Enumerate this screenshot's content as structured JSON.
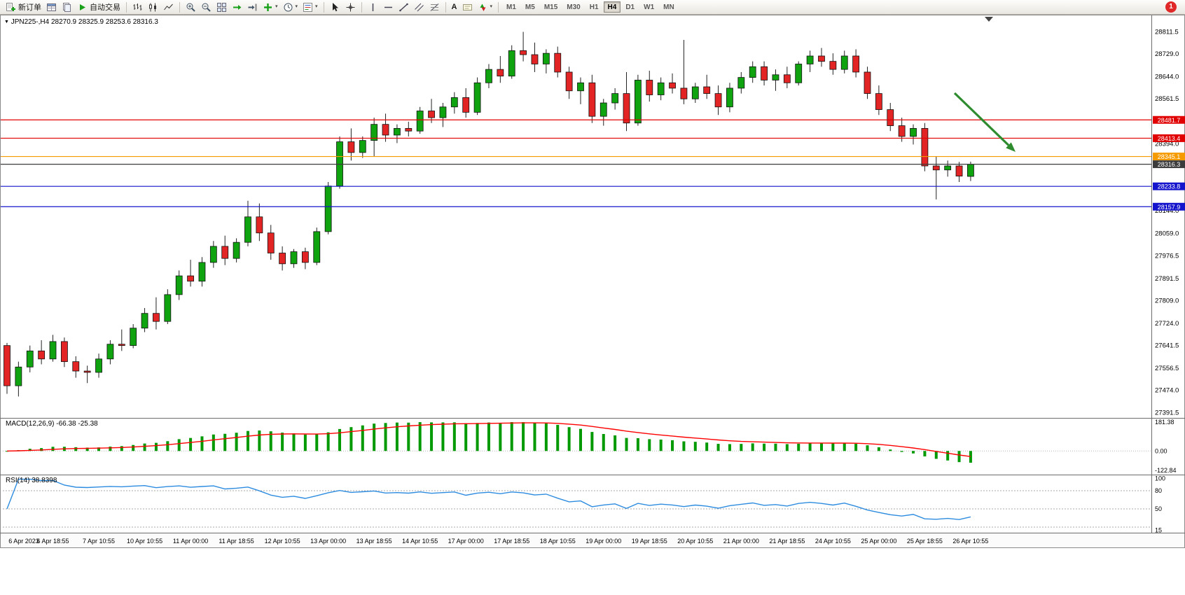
{
  "toolbar": {
    "new_order_label": "新订单",
    "auto_trading_label": "自动交易",
    "text_tool_label": "A",
    "timeframes": [
      "M1",
      "M5",
      "M15",
      "M30",
      "H1",
      "H4",
      "D1",
      "W1",
      "MN"
    ],
    "active_timeframe": "H4",
    "notification_count": "1"
  },
  "glyphs": {
    "caret_down": "▾",
    "collapse_marker": "▼"
  },
  "chart": {
    "symbol_period": "JPN225-,H4",
    "ohlc": "28270.9 28325.9 28253.6 28316.3"
  },
  "indicators": {
    "macd_label": "MACD(12,26,9) -66.38 -25.38",
    "rsi_label": "RSI(14) 38.8398"
  },
  "chart_data": {
    "type": "candlestick",
    "symbol": "JPN225-",
    "period": "H4",
    "price_range": {
      "min": 27378,
      "max": 28827
    },
    "price_axis_labels": [
      28811.5,
      28729.0,
      28644.0,
      28561.5,
      28394.0,
      28144.0,
      28059.0,
      27976.5,
      27891.5,
      27809.0,
      27724.0,
      27641.5,
      27556.5,
      27474.0,
      27391.5
    ],
    "horizontal_lines": [
      {
        "price": 28481.7,
        "label": "28481.7",
        "color": "#e00000"
      },
      {
        "price": 28413.4,
        "label": "28413.4",
        "color": "#e00000"
      },
      {
        "price": 28345.1,
        "label": "28345.1",
        "color": "#f59a00"
      },
      {
        "price": 28316.3,
        "label": "28316.3",
        "color": "#3c3c3c",
        "role": "current-price"
      },
      {
        "price": 28233.8,
        "label": "28233.8",
        "color": "#1414cc"
      },
      {
        "price": 28157.9,
        "label": "28157.9",
        "color": "#1414cc"
      }
    ],
    "colors": {
      "up": "#0fa30f",
      "down": "#e32424",
      "wick": "#222222",
      "macd_histogram": "#009a00",
      "macd_signal": "#ff0000",
      "rsi": "#2d8ce0",
      "arrow": "#2e8b2e"
    },
    "time_labels": [
      "6 Apr 2023",
      "6 Apr 18:55",
      "7 Apr 10:55",
      "10 Apr 10:55",
      "11 Apr 00:00",
      "11 Apr 18:55",
      "12 Apr 10:55",
      "13 Apr 00:00",
      "13 Apr 18:55",
      "14 Apr 10:55",
      "17 Apr 00:00",
      "17 Apr 18:55",
      "18 Apr 10:55",
      "19 Apr 00:00",
      "19 Apr 18:55",
      "20 Apr 10:55",
      "21 Apr 00:00",
      "21 Apr 18:55",
      "24 Apr 10:55",
      "25 Apr 00:00",
      "25 Apr 18:55",
      "26 Apr 10:55"
    ],
    "label_step": 4,
    "candles": [
      [
        27640,
        27650,
        27460,
        27490
      ],
      [
        27490,
        27580,
        27450,
        27560
      ],
      [
        27560,
        27640,
        27540,
        27620
      ],
      [
        27620,
        27660,
        27570,
        27590
      ],
      [
        27590,
        27680,
        27580,
        27655
      ],
      [
        27655,
        27670,
        27560,
        27580
      ],
      [
        27580,
        27600,
        27520,
        27545
      ],
      [
        27545,
        27565,
        27500,
        27540
      ],
      [
        27540,
        27610,
        27520,
        27590
      ],
      [
        27590,
        27660,
        27570,
        27645
      ],
      [
        27645,
        27700,
        27620,
        27640
      ],
      [
        27640,
        27720,
        27630,
        27705
      ],
      [
        27705,
        27780,
        27690,
        27760
      ],
      [
        27760,
        27820,
        27700,
        27730
      ],
      [
        27730,
        27850,
        27720,
        27830
      ],
      [
        27830,
        27920,
        27810,
        27900
      ],
      [
        27900,
        27960,
        27860,
        27880
      ],
      [
        27880,
        27970,
        27860,
        27950
      ],
      [
        27950,
        28030,
        27930,
        28010
      ],
      [
        28010,
        28050,
        27940,
        27965
      ],
      [
        27965,
        28040,
        27950,
        28025
      ],
      [
        28025,
        28180,
        28010,
        28120
      ],
      [
        28120,
        28170,
        28030,
        28060
      ],
      [
        28060,
        28090,
        27960,
        27985
      ],
      [
        27985,
        28010,
        27920,
        27945
      ],
      [
        27945,
        28000,
        27930,
        27990
      ],
      [
        27990,
        28005,
        27925,
        27950
      ],
      [
        27950,
        28080,
        27940,
        28065
      ],
      [
        28065,
        28250,
        28055,
        28235
      ],
      [
        28235,
        28420,
        28225,
        28400
      ],
      [
        28400,
        28450,
        28330,
        28360
      ],
      [
        28360,
        28420,
        28340,
        28405
      ],
      [
        28405,
        28490,
        28345,
        28465
      ],
      [
        28465,
        28505,
        28400,
        28425
      ],
      [
        28425,
        28465,
        28395,
        28450
      ],
      [
        28450,
        28475,
        28420,
        28440
      ],
      [
        28440,
        28530,
        28430,
        28515
      ],
      [
        28515,
        28560,
        28470,
        28490
      ],
      [
        28490,
        28545,
        28455,
        28530
      ],
      [
        28530,
        28585,
        28505,
        28565
      ],
      [
        28565,
        28600,
        28490,
        28510
      ],
      [
        28510,
        28640,
        28500,
        28620
      ],
      [
        28620,
        28690,
        28600,
        28670
      ],
      [
        28670,
        28720,
        28620,
        28645
      ],
      [
        28645,
        28760,
        28635,
        28740
      ],
      [
        28740,
        28810,
        28700,
        28725
      ],
      [
        28725,
        28770,
        28660,
        28690
      ],
      [
        28690,
        28745,
        28655,
        28730
      ],
      [
        28730,
        28755,
        28640,
        28660
      ],
      [
        28660,
        28680,
        28560,
        28590
      ],
      [
        28590,
        28640,
        28540,
        28620
      ],
      [
        28620,
        28650,
        28470,
        28495
      ],
      [
        28495,
        28560,
        28460,
        28545
      ],
      [
        28545,
        28600,
        28520,
        28580
      ],
      [
        28580,
        28660,
        28440,
        28470
      ],
      [
        28470,
        28650,
        28460,
        28630
      ],
      [
        28630,
        28665,
        28550,
        28575
      ],
      [
        28575,
        28640,
        28555,
        28620
      ],
      [
        28620,
        28655,
        28580,
        28600
      ],
      [
        28600,
        28780,
        28540,
        28560
      ],
      [
        28560,
        28620,
        28545,
        28605
      ],
      [
        28605,
        28650,
        28560,
        28580
      ],
      [
        28580,
        28610,
        28500,
        28530
      ],
      [
        28530,
        28620,
        28510,
        28600
      ],
      [
        28600,
        28660,
        28580,
        28640
      ],
      [
        28640,
        28700,
        28620,
        28680
      ],
      [
        28680,
        28700,
        28610,
        28630
      ],
      [
        28630,
        28670,
        28590,
        28650
      ],
      [
        28650,
        28680,
        28600,
        28620
      ],
      [
        28620,
        28700,
        28610,
        28690
      ],
      [
        28690,
        28740,
        28660,
        28720
      ],
      [
        28720,
        28750,
        28680,
        28700
      ],
      [
        28700,
        28730,
        28650,
        28670
      ],
      [
        28670,
        28740,
        28655,
        28720
      ],
      [
        28720,
        28745,
        28640,
        28660
      ],
      [
        28660,
        28680,
        28560,
        28580
      ],
      [
        28580,
        28610,
        28500,
        28520
      ],
      [
        28520,
        28545,
        28440,
        28460
      ],
      [
        28460,
        28490,
        28400,
        28420
      ],
      [
        28420,
        28465,
        28390,
        28450
      ],
      [
        28450,
        28470,
        28290,
        28310
      ],
      [
        28310,
        28345,
        28185,
        28295
      ],
      [
        28295,
        28330,
        28270,
        28310
      ],
      [
        28310,
        28325,
        28250,
        28272
      ],
      [
        28270.9,
        28325.9,
        28253.6,
        28316.3
      ]
    ],
    "macd_axis": {
      "top": "181.38",
      "zero": "0.00",
      "bottom": "-122.84"
    },
    "rsi_axis": {
      "labels": [
        {
          "value": 100,
          "text": "100"
        },
        {
          "value": 80,
          "text": "80"
        },
        {
          "value": 50,
          "text": "50"
        },
        {
          "value": 15,
          "text": "15"
        }
      ],
      "levels": [
        80,
        50,
        20
      ]
    }
  }
}
